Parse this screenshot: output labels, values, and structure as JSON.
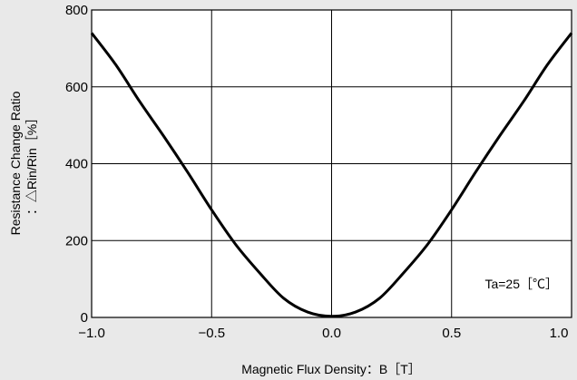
{
  "chart_data": {
    "type": "line",
    "xlabel": "Magnetic Flux Density：B［T］",
    "ylabel_line1": "Resistance Change Ratio",
    "ylabel_line2": "：△Rin/Rin［%］",
    "xlim": [
      -1.0,
      1.0
    ],
    "ylim": [
      0,
      800
    ],
    "x_ticks": [
      "−1.0",
      "−0.5",
      "0.0",
      "0.5",
      "1.0"
    ],
    "y_ticks": [
      "0",
      "200",
      "400",
      "600",
      "800"
    ],
    "grid": true,
    "annotation": "Ta=25［℃］",
    "series": [
      {
        "x": [
          -1.0,
          -0.9,
          -0.8,
          -0.7,
          -0.6,
          -0.5,
          -0.4,
          -0.3,
          -0.2,
          -0.1,
          0.0,
          0.1,
          0.2,
          0.3,
          0.4,
          0.5,
          0.6,
          0.7,
          0.8,
          0.9,
          1.0
        ],
        "y": [
          740,
          658,
          562,
          472,
          378,
          280,
          190,
          116,
          50,
          14,
          3,
          14,
          50,
          116,
          190,
          280,
          378,
          472,
          562,
          658,
          740
        ]
      }
    ],
    "colors": {
      "background": "#e9e9e9",
      "plot_area": "#ffffff",
      "line": "#000000",
      "grid": "#000000"
    }
  }
}
